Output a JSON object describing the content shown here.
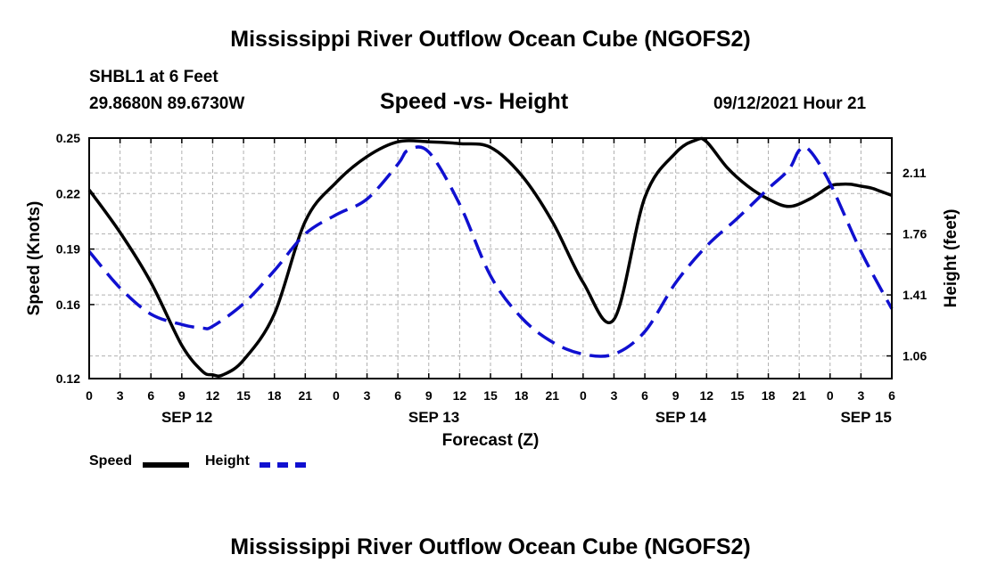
{
  "header": {
    "title": "Mississippi River Outflow Ocean Cube (NGOFS2)",
    "station": "SHBL1 at 6 Feet",
    "coords": "29.8680N  89.6730W",
    "subtitle": "Speed -vs- Height",
    "datetime": "09/12/2021 Hour 21"
  },
  "footer": {
    "title": "Mississippi River Outflow Ocean Cube (NGOFS2)"
  },
  "legend": {
    "speed_label": "Speed",
    "height_label": "Height"
  },
  "colors": {
    "speed": "#000000",
    "height": "#1010d0",
    "grid": "#b0b0b0"
  },
  "chart_data": {
    "type": "line",
    "title": "Speed -vs- Height",
    "xlabel": "Forecast (Z)",
    "ylabel": "Speed (Knots)",
    "y2label": "Height (feet)",
    "xlim": [
      0,
      78
    ],
    "ylim": [
      0.12,
      0.25
    ],
    "y2lim": [
      0.93,
      2.31
    ],
    "x_ticks": [
      0,
      3,
      6,
      9,
      12,
      15,
      18,
      21,
      24,
      27,
      30,
      33,
      36,
      39,
      42,
      45,
      48,
      51,
      54,
      57,
      60,
      63,
      66,
      69,
      72,
      75,
      78
    ],
    "x_tick_labels": [
      "0",
      "3",
      "6",
      "9",
      "12",
      "15",
      "18",
      "21",
      "0",
      "3",
      "6",
      "9",
      "12",
      "15",
      "18",
      "21",
      "0",
      "3",
      "6",
      "9",
      "12",
      "15",
      "18",
      "21",
      "0",
      "3",
      "6"
    ],
    "date_labels": [
      {
        "x": 9.5,
        "label": "SEP 12"
      },
      {
        "x": 33.5,
        "label": "SEP 13"
      },
      {
        "x": 57.5,
        "label": "SEP 14"
      },
      {
        "x": 75.5,
        "label": "SEP 15"
      }
    ],
    "y_ticks": [
      0.12,
      0.16,
      0.19,
      0.22,
      0.25
    ],
    "y_tick_labels": [
      "0.12",
      "0.16",
      "0.19",
      "0.22",
      "0.25"
    ],
    "y2_ticks": [
      1.06,
      1.41,
      1.76,
      2.11
    ],
    "y2_tick_labels": [
      "1.06",
      "1.41",
      "1.76",
      "2.11"
    ],
    "series": [
      {
        "name": "Speed",
        "axis": "left",
        "style": "solid",
        "x": [
          0,
          3,
          6,
          9,
          11,
          12,
          13,
          15,
          18,
          21,
          24,
          27,
          30,
          33,
          36,
          39,
          42,
          45,
          48,
          51,
          54,
          57,
          59,
          60,
          62,
          64,
          66,
          68,
          70,
          72,
          73,
          74,
          75,
          76,
          77,
          78
        ],
        "y": [
          0.222,
          0.199,
          0.172,
          0.138,
          0.124,
          0.122,
          0.122,
          0.13,
          0.155,
          0.205,
          0.226,
          0.24,
          0.248,
          0.248,
          0.247,
          0.245,
          0.23,
          0.205,
          0.172,
          0.152,
          0.218,
          0.242,
          0.249,
          0.248,
          0.234,
          0.224,
          0.217,
          0.213,
          0.217,
          0.224,
          0.225,
          0.225,
          0.224,
          0.223,
          0.221,
          0.219
        ]
      },
      {
        "name": "Height",
        "axis": "right",
        "style": "dashed",
        "x": [
          0,
          3,
          6,
          9,
          11,
          12,
          15,
          18,
          21,
          24,
          27,
          30,
          31,
          33,
          36,
          39,
          42,
          45,
          48,
          51,
          54,
          57,
          60,
          63,
          66,
          68,
          69,
          70,
          72,
          75,
          78
        ],
        "y": [
          1.66,
          1.45,
          1.3,
          1.24,
          1.22,
          1.23,
          1.36,
          1.55,
          1.76,
          1.87,
          1.96,
          2.16,
          2.24,
          2.23,
          1.93,
          1.52,
          1.28,
          1.14,
          1.07,
          1.07,
          1.2,
          1.48,
          1.69,
          1.85,
          2.02,
          2.13,
          2.24,
          2.24,
          2.05,
          1.66,
          1.33
        ]
      }
    ]
  }
}
